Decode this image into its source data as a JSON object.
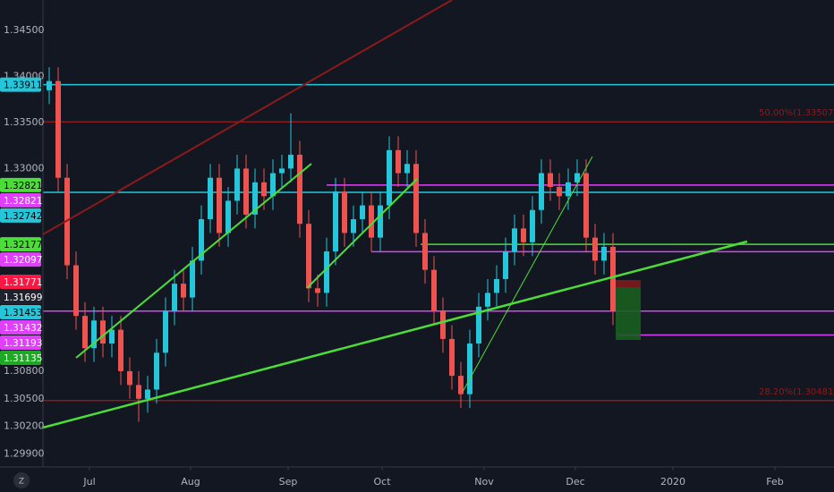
{
  "chart_data": {
    "type": "candlestick",
    "up_color": "#26c6da",
    "down_color": "#ef5350",
    "open": [
      1.3385,
      1.3395,
      1.329,
      1.3195,
      1.314,
      1.3105,
      1.3135,
      1.311,
      1.3125,
      1.308,
      1.3065,
      1.305,
      1.306,
      1.31,
      1.3145,
      1.3175,
      1.316,
      1.32,
      1.3245,
      1.329,
      1.323,
      1.3265,
      1.33,
      1.325,
      1.3285,
      1.327,
      1.3295,
      1.33,
      1.3315,
      1.324,
      1.317,
      1.3165,
      1.321,
      1.3275,
      1.323,
      1.3245,
      1.326,
      1.3225,
      1.326,
      1.332,
      1.3295,
      1.3305,
      1.323,
      1.319,
      1.3145,
      1.3115,
      1.3075,
      1.3055,
      1.311,
      1.315,
      1.3165,
      1.318,
      1.321,
      1.3235,
      1.322,
      1.3255,
      1.3295,
      1.328,
      1.327,
      1.3285,
      1.3295,
      1.3225,
      1.32,
      1.3215
    ],
    "high": [
      1.341,
      1.341,
      1.3305,
      1.321,
      1.3155,
      1.315,
      1.315,
      1.314,
      1.314,
      1.3095,
      1.308,
      1.3075,
      1.3115,
      1.316,
      1.319,
      1.319,
      1.3215,
      1.326,
      1.3305,
      1.3305,
      1.328,
      1.3315,
      1.3315,
      1.33,
      1.33,
      1.331,
      1.3315,
      1.336,
      1.333,
      1.3255,
      1.3185,
      1.3225,
      1.329,
      1.329,
      1.326,
      1.3275,
      1.3275,
      1.3275,
      1.3335,
      1.3335,
      1.332,
      1.332,
      1.3245,
      1.3205,
      1.316,
      1.313,
      1.309,
      1.3125,
      1.3165,
      1.318,
      1.3195,
      1.3225,
      1.325,
      1.325,
      1.327,
      1.331,
      1.331,
      1.3295,
      1.33,
      1.331,
      1.331,
      1.324,
      1.323,
      1.323
    ],
    "low": [
      1.337,
      1.3275,
      1.318,
      1.3125,
      1.309,
      1.309,
      1.3095,
      1.3095,
      1.3065,
      1.305,
      1.3025,
      1.3035,
      1.3045,
      1.3085,
      1.313,
      1.3145,
      1.3145,
      1.3185,
      1.323,
      1.3215,
      1.3215,
      1.325,
      1.3235,
      1.3235,
      1.3255,
      1.3255,
      1.328,
      1.3285,
      1.3225,
      1.3155,
      1.315,
      1.315,
      1.3195,
      1.3215,
      1.3215,
      1.323,
      1.321,
      1.321,
      1.3245,
      1.328,
      1.328,
      1.3215,
      1.3175,
      1.313,
      1.31,
      1.306,
      1.304,
      1.304,
      1.3095,
      1.3135,
      1.315,
      1.3165,
      1.3195,
      1.3205,
      1.3205,
      1.324,
      1.3265,
      1.3255,
      1.3255,
      1.327,
      1.321,
      1.3185,
      1.3185,
      1.313
    ],
    "close": [
      1.3395,
      1.329,
      1.3195,
      1.314,
      1.3105,
      1.3135,
      1.311,
      1.3125,
      1.308,
      1.3065,
      1.305,
      1.306,
      1.31,
      1.3145,
      1.3175,
      1.316,
      1.32,
      1.3245,
      1.329,
      1.323,
      1.3265,
      1.33,
      1.325,
      1.3285,
      1.327,
      1.3295,
      1.33,
      1.3315,
      1.324,
      1.317,
      1.3165,
      1.321,
      1.3275,
      1.323,
      1.3245,
      1.326,
      1.3225,
      1.326,
      1.332,
      1.3295,
      1.3305,
      1.323,
      1.319,
      1.3145,
      1.3115,
      1.3075,
      1.3055,
      1.311,
      1.315,
      1.3165,
      1.318,
      1.321,
      1.3235,
      1.322,
      1.3255,
      1.3295,
      1.328,
      1.327,
      1.3285,
      1.3295,
      1.3225,
      1.32,
      1.3215,
      1.3145
    ],
    "xlim": [
      -0.7,
      87.7
    ],
    "xticks": [
      {
        "value": 4.5,
        "label": "Jul"
      },
      {
        "value": 15.8,
        "label": "Aug"
      },
      {
        "value": 26.7,
        "label": "Sep"
      },
      {
        "value": 37.2,
        "label": "Oct"
      },
      {
        "value": 48.6,
        "label": "Nov"
      },
      {
        "value": 58.8,
        "label": "Dec"
      },
      {
        "value": 69.7,
        "label": "2020"
      },
      {
        "value": 81.1,
        "label": "Feb"
      }
    ],
    "ylim": [
      1.2976,
      1.3483
    ],
    "yticks": [
      {
        "value": 1.345,
        "label": "1.34500"
      },
      {
        "value": 1.34,
        "label": "1.34000"
      },
      {
        "value": 1.335,
        "label": "1.33500"
      },
      {
        "value": 1.33,
        "label": "1.33000"
      },
      {
        "value": 1.308,
        "label": "1.30800"
      },
      {
        "value": 1.305,
        "label": "1.30500"
      },
      {
        "value": 1.302,
        "label": "1.30200"
      },
      {
        "value": 1.299,
        "label": "1.29900"
      }
    ],
    "levels": [
      {
        "price": 1.33911,
        "color": "#26c6da"
      },
      {
        "price": 1.33507,
        "color": "#8b1a1a",
        "label": "50.00%(1.33507)"
      },
      {
        "price": 1.32821,
        "color": "#e040fb"
      },
      {
        "price": 1.32742,
        "color": "#26c6da"
      },
      {
        "price": 1.32177,
        "color": "#4cdd3a"
      },
      {
        "price": 1.32097,
        "color": "#e040fb"
      },
      {
        "price": 1.31453,
        "color": "#e040fb"
      },
      {
        "price": 1.31193,
        "color": "#e040fb"
      },
      {
        "price": 1.30481,
        "color": "#8b1a1a",
        "label": "28.20%(1.30481)"
      }
    ],
    "badges": [
      {
        "value": 1.33911,
        "color": "#26c6da"
      },
      {
        "value": 1.32821,
        "color": "#4cdd3a"
      },
      {
        "value": 1.32821,
        "color": "#e040fb"
      },
      {
        "value": 1.32742,
        "color": "#26c6da"
      },
      {
        "value": 1.32177,
        "color": "#4cdd3a"
      },
      {
        "value": 1.32097,
        "color": "#e040fb"
      },
      {
        "value": 1.31771,
        "color": "#ff1744"
      },
      {
        "value": 1.31699,
        "color": "#1e222d"
      },
      {
        "value": 1.31453,
        "color": "#26c6da"
      },
      {
        "value": 1.31432,
        "color": "#e040fb"
      },
      {
        "value": 1.31193,
        "color": "#e040fb"
      },
      {
        "value": 1.31135,
        "color": "#1fa824"
      }
    ]
  }
}
